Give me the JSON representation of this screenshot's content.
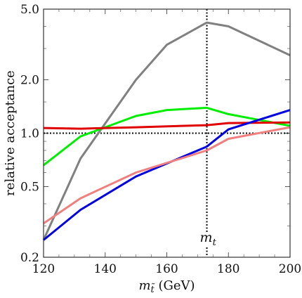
{
  "chart_data": {
    "type": "line",
    "title": "",
    "xlabel_main": "m",
    "xlabel_sub": "t̃",
    "xlabel_unit": " (GeV)",
    "ylabel": "relative acceptance",
    "xlim": [
      120,
      200
    ],
    "ylim": [
      0.2,
      5.0
    ],
    "yscale": "log",
    "x_ticks": [
      120,
      140,
      160,
      180,
      200
    ],
    "x_tick_labels": [
      "120",
      "140",
      "160",
      "180",
      "200"
    ],
    "y_ticks": [
      0.2,
      0.5,
      1.0,
      2.0,
      5.0
    ],
    "y_tick_labels": [
      "0.2",
      "0.5",
      "1.0",
      "2.0",
      "5.0"
    ],
    "grid": false,
    "reference_lines": {
      "horizontal_y": 1.0,
      "vertical_x": 173,
      "vertical_label_main": "m",
      "vertical_label_sub": "t"
    },
    "series": [
      {
        "color": "#808080",
        "x": [
          120,
          132,
          150,
          160,
          173,
          180,
          200
        ],
        "values": [
          0.25,
          0.72,
          2.0,
          3.15,
          4.2,
          4.0,
          2.75
        ]
      },
      {
        "color": "#00ee00",
        "x": [
          120,
          132,
          140,
          150,
          160,
          173,
          180,
          200
        ],
        "values": [
          0.66,
          0.96,
          1.08,
          1.25,
          1.35,
          1.39,
          1.28,
          1.1
        ]
      },
      {
        "color": "#e00000",
        "x": [
          120,
          132,
          150,
          173,
          180,
          200
        ],
        "values": [
          1.07,
          1.06,
          1.08,
          1.11,
          1.14,
          1.15
        ]
      },
      {
        "color": "#0000e0",
        "x": [
          120,
          132,
          150,
          173,
          180,
          200
        ],
        "values": [
          0.25,
          0.37,
          0.57,
          0.84,
          1.05,
          1.35
        ]
      },
      {
        "color": "#f08080",
        "x": [
          120,
          132,
          150,
          173,
          180,
          200
        ],
        "values": [
          0.31,
          0.43,
          0.6,
          0.8,
          0.93,
          1.08
        ]
      }
    ]
  }
}
